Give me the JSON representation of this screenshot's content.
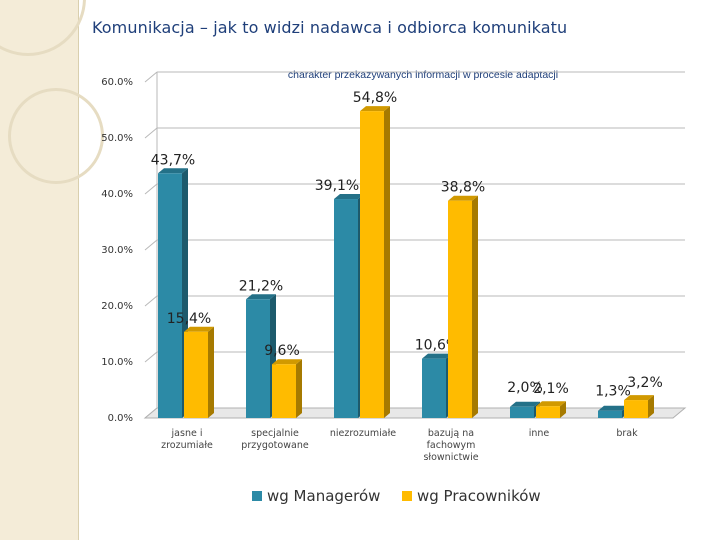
{
  "slide": {
    "title": "Komunikacja – jak to widzi nadawca i odbiorca komunikatu"
  },
  "chart_data": {
    "type": "bar",
    "title": "charakter przekazywanych informacji w procesie adaptacji",
    "categories": [
      [
        "jasne i",
        "zrozumiałe"
      ],
      [
        "specjalnie",
        "przygotowane"
      ],
      [
        "niezrozumiałe"
      ],
      [
        "bazują na",
        "fachowym",
        "słownictwie"
      ],
      [
        "inne"
      ],
      [
        "brak"
      ]
    ],
    "series": [
      {
        "name": "wg Managerów",
        "color": "#2c8aa6",
        "values": [
          43.7,
          21.2,
          39.1,
          10.6,
          2.0,
          1.3
        ],
        "labels": [
          "43,7%",
          "21,2%",
          "39,1%",
          "10,6%",
          "2,0%",
          "1,3%"
        ]
      },
      {
        "name": "wg Pracowników",
        "color": "#ffbb00",
        "values": [
          15.4,
          9.6,
          54.8,
          38.8,
          2.1,
          3.2
        ],
        "labels": [
          "15,4%",
          "9,6%",
          "54,8%",
          "38,8%",
          "2,1%",
          "3,2%"
        ]
      }
    ],
    "yticks": [
      "0.0%",
      "10.0%",
      "20.0%",
      "30.0%",
      "40.0%",
      "50.0%",
      "60.0%"
    ],
    "ylim": [
      0,
      60
    ],
    "grid": true,
    "legend_position": "bottom"
  }
}
